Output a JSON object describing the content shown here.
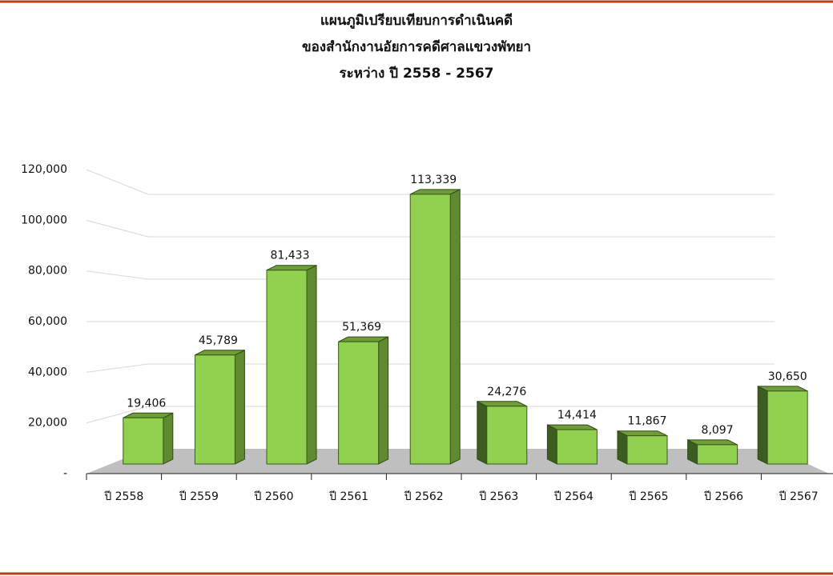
{
  "chart_data": {
    "type": "bar",
    "title": [
      "แผนภูมิเปรียบเทียบการดำเนินคดี",
      "ของสำนักงานอัยการคดีศาลแขวงพัทยา",
      "ระหว่าง ปี 2558 - 2567"
    ],
    "categories": [
      "ปี 2558",
      "ปี 2559",
      "ปี 2560",
      "ปี 2561",
      "ปี 2562",
      "ปี 2563",
      "ปี 2564",
      "ปี 2565",
      "ปี 2566",
      "ปี 2567"
    ],
    "values": [
      19406,
      45789,
      81433,
      51369,
      113339,
      24276,
      14414,
      11867,
      8097,
      30650
    ],
    "value_labels": [
      "19,406",
      "45,789",
      "81,433",
      "51,369",
      "113,339",
      "24,276",
      "14,414",
      "11,867",
      "8,097",
      "30,650"
    ],
    "color": "#92d050",
    "ylim": [
      0,
      120000
    ],
    "yticks": [
      {
        "value": 0,
        "label": "-"
      },
      {
        "value": 20000,
        "label": "20,000"
      },
      {
        "value": 40000,
        "label": "40,000"
      },
      {
        "value": 60000,
        "label": "60,000"
      },
      {
        "value": 80000,
        "label": "80,000"
      },
      {
        "value": 100000,
        "label": "100,000"
      },
      {
        "value": 120000,
        "label": "120,000"
      }
    ],
    "grid": true
  }
}
